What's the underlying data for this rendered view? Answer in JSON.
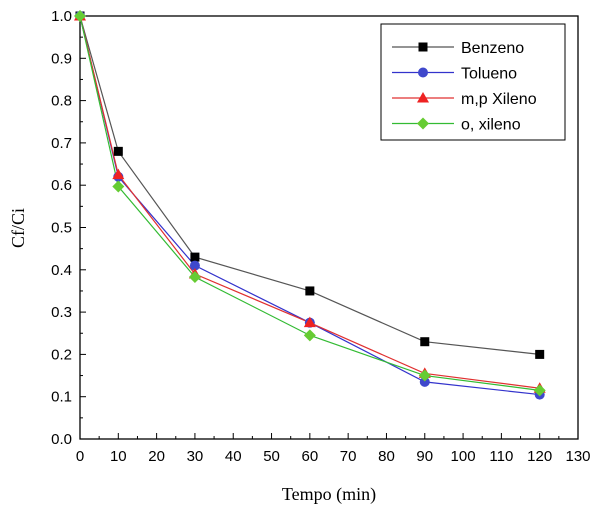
{
  "chart_data": {
    "type": "line",
    "xlabel": "Tempo (min)",
    "ylabel": "Cf/Ci",
    "xlim": [
      0,
      130
    ],
    "ylim": [
      0.0,
      1.0
    ],
    "xticks": [
      "0",
      "10",
      "20",
      "30",
      "40",
      "50",
      "60",
      "70",
      "80",
      "90",
      "100",
      "110",
      "120",
      "130"
    ],
    "yticks": [
      "0.0",
      "0.1",
      "0.2",
      "0.3",
      "0.4",
      "0.5",
      "0.6",
      "0.7",
      "0.8",
      "0.9",
      "1.0"
    ],
    "grid": false,
    "legend_position": "top-right",
    "x": [
      0,
      10,
      30,
      60,
      90,
      120
    ],
    "series": [
      {
        "name": "Benzeno",
        "marker": "square",
        "line_color": "#555555",
        "marker_color": "#000000",
        "values": [
          1.0,
          0.68,
          0.43,
          0.35,
          0.23,
          0.2
        ]
      },
      {
        "name": "Tolueno",
        "marker": "circle",
        "line_color": "#3333cc",
        "marker_color": "#3f48cc",
        "values": [
          1.0,
          0.62,
          0.41,
          0.275,
          0.135,
          0.105
        ]
      },
      {
        "name": "m,p Xileno",
        "marker": "triangle",
        "line_color": "#e03030",
        "marker_color": "#ee2222",
        "values": [
          1.0,
          0.625,
          0.39,
          0.275,
          0.155,
          0.12
        ]
      },
      {
        "name": "o, xileno",
        "marker": "diamond",
        "line_color": "#33bb33",
        "marker_color": "#66cc33",
        "values": [
          1.0,
          0.597,
          0.383,
          0.245,
          0.15,
          0.115
        ]
      }
    ]
  }
}
